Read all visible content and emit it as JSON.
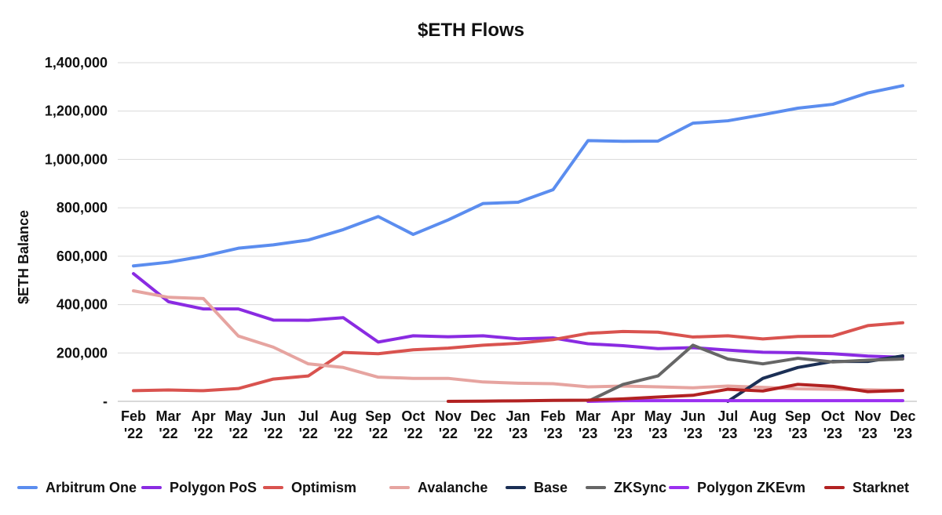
{
  "chart_data": {
    "type": "line",
    "title": "$ETH Flows",
    "ylabel": "$ETH Balance",
    "xlabel": "",
    "ylim": [
      0,
      1400000
    ],
    "yticks": [
      0,
      200000,
      400000,
      600000,
      800000,
      1000000,
      1200000,
      1400000
    ],
    "ytick_labels": [
      "-",
      "200,000",
      "400,000",
      "600,000",
      "800,000",
      "1,000,000",
      "1,200,000",
      "1,400,000"
    ],
    "grid": true,
    "legend_position": "bottom",
    "categories": [
      "Feb '22",
      "Mar '22",
      "Apr '22",
      "May '22",
      "Jun '22",
      "Jul '22",
      "Aug '22",
      "Sep '22",
      "Oct '22",
      "Nov '22",
      "Dec '22",
      "Jan '23",
      "Feb '23",
      "Mar '23",
      "Apr '23",
      "May '23",
      "Jun '23",
      "Jul '23",
      "Aug '23",
      "Sep '23",
      "Oct '23",
      "Nov '23",
      "Dec '23"
    ],
    "category_lines": [
      [
        "Feb",
        "'22"
      ],
      [
        "Mar",
        "'22"
      ],
      [
        "Apr",
        "'22"
      ],
      [
        "May",
        "'22"
      ],
      [
        "Jun",
        "'22"
      ],
      [
        "Jul",
        "'22"
      ],
      [
        "Aug",
        "'22"
      ],
      [
        "Sep",
        "'22"
      ],
      [
        "Oct",
        "'22"
      ],
      [
        "Nov",
        "'22"
      ],
      [
        "Dec",
        "'22"
      ],
      [
        "Jan",
        "'23"
      ],
      [
        "Feb",
        "'23"
      ],
      [
        "Mar",
        "'23"
      ],
      [
        "Apr",
        "'23"
      ],
      [
        "May",
        "'23"
      ],
      [
        "Jun",
        "'23"
      ],
      [
        "Jul",
        "'23"
      ],
      [
        "Aug",
        "'23"
      ],
      [
        "Sep",
        "'23"
      ],
      [
        "Oct",
        "'23"
      ],
      [
        "Nov",
        "'23"
      ],
      [
        "Dec",
        "'23"
      ]
    ],
    "series": [
      {
        "name": "Arbitrum One",
        "color": "#5B8DEF",
        "values": [
          560000,
          575000,
          600000,
          633000,
          647000,
          667000,
          710000,
          764000,
          690000,
          750000,
          818000,
          823000,
          875000,
          1078000,
          1075000,
          1076000,
          1150000,
          1160000,
          1185000,
          1212000,
          1228000,
          1275000,
          1305000
        ]
      },
      {
        "name": "Polygon PoS",
        "color": "#8A2BE2",
        "values": [
          528000,
          412000,
          382000,
          382000,
          336000,
          335000,
          346000,
          245000,
          271000,
          267000,
          271000,
          258000,
          262000,
          238000,
          230000,
          218000,
          222000,
          212000,
          203000,
          201000,
          197000,
          187000,
          182000
        ]
      },
      {
        "name": "Optimism",
        "color": "#D9534F",
        "values": [
          44000,
          47000,
          44000,
          53000,
          92000,
          105000,
          202000,
          197000,
          213000,
          220000,
          232000,
          240000,
          255000,
          281000,
          289000,
          286000,
          266000,
          271000,
          258000,
          268000,
          270000,
          313000,
          325000
        ]
      },
      {
        "name": "Avalanche",
        "color": "#E6A4A0",
        "values": [
          457000,
          430000,
          425000,
          270000,
          224000,
          155000,
          140000,
          100000,
          95000,
          95000,
          80000,
          75000,
          73000,
          60000,
          63000,
          60000,
          56000,
          63000,
          58000,
          52000,
          50000,
          48000,
          45000
        ]
      },
      {
        "name": "Base",
        "color": "#1B2F55",
        "values": [
          null,
          null,
          null,
          null,
          null,
          null,
          null,
          null,
          null,
          null,
          null,
          null,
          null,
          null,
          null,
          null,
          null,
          0,
          95000,
          140000,
          165000,
          165000,
          188000
        ]
      },
      {
        "name": "ZKSync",
        "color": "#666666",
        "values": [
          null,
          null,
          null,
          null,
          null,
          null,
          null,
          null,
          null,
          null,
          null,
          null,
          null,
          0,
          70000,
          105000,
          232000,
          175000,
          155000,
          178000,
          163000,
          170000,
          175000
        ]
      },
      {
        "name": "Polygon ZKEvm",
        "color": "#9B30F0",
        "values": [
          null,
          null,
          null,
          null,
          null,
          null,
          null,
          null,
          null,
          null,
          null,
          null,
          null,
          0,
          3000,
          3000,
          3000,
          3000,
          3000,
          3000,
          3000,
          3000,
          3000
        ]
      },
      {
        "name": "Starknet",
        "color": "#B22222",
        "values": [
          null,
          null,
          null,
          null,
          null,
          null,
          null,
          null,
          null,
          0,
          1000,
          2000,
          4000,
          5000,
          10000,
          18000,
          25000,
          50000,
          43000,
          70000,
          62000,
          40000,
          45000
        ]
      }
    ]
  }
}
